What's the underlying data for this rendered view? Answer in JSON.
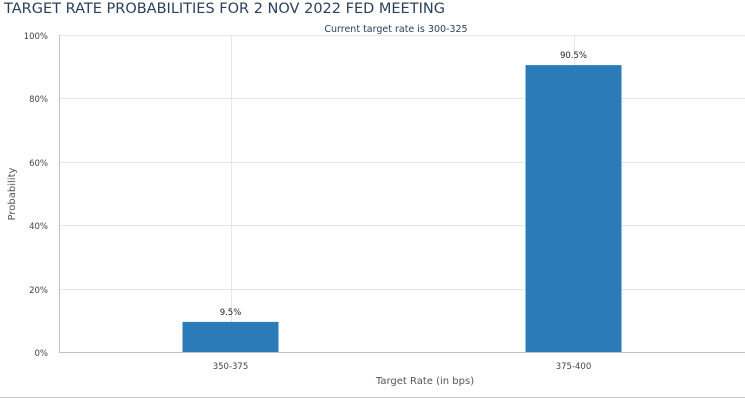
{
  "chart_data": {
    "type": "bar",
    "title": "TARGET RATE PROBABILITIES FOR 2 NOV 2022 FED MEETING",
    "subtitle": "Current target rate is 300-325",
    "xlabel": "Target Rate (in bps)",
    "ylabel": "Probability",
    "categories": [
      "350-375",
      "375-400"
    ],
    "values": [
      9.5,
      90.5
    ],
    "data_labels": [
      "9.5%",
      "90.5%"
    ],
    "ylim": [
      0,
      100
    ],
    "yticks": [
      0,
      20,
      40,
      60,
      80,
      100
    ],
    "ytick_labels": [
      "0%",
      "20%",
      "40%",
      "60%",
      "80%",
      "100%"
    ],
    "grid": true,
    "legend": "none",
    "colors": {
      "bar": "#2b7bb9",
      "grid": "#e6e6e6",
      "axis": "#c0c0c0",
      "title": "#2b3f5c",
      "subtitle": "#2b3f5c",
      "text": "#444444"
    }
  }
}
